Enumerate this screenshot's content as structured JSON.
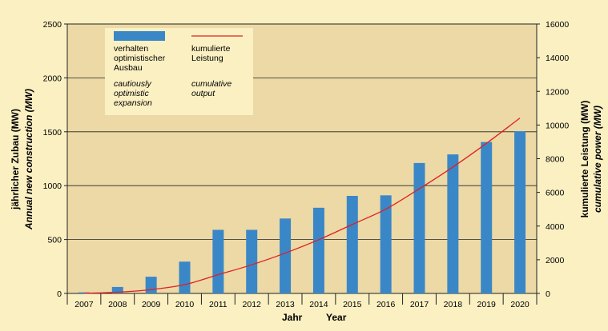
{
  "chart_data": {
    "type": "bar",
    "categories": [
      "2007",
      "2008",
      "2009",
      "2010",
      "2011",
      "2012",
      "2013",
      "2014",
      "2015",
      "2016",
      "2017",
      "2018",
      "2019",
      "2020"
    ],
    "series": [
      {
        "name": "verhalten optimistischer Ausbau / cautiously optimistic expansion",
        "type": "bar",
        "axis": "left",
        "color": "#3a87c8",
        "values": [
          10,
          60,
          155,
          295,
          590,
          590,
          695,
          795,
          905,
          910,
          1210,
          1290,
          1405,
          1505
        ]
      },
      {
        "name": "kumulierte Leistung / cumulative output",
        "type": "line",
        "axis": "right",
        "color": "#e02020",
        "values": [
          10,
          70,
          225,
          520,
          1110,
          1700,
          2395,
          3190,
          4095,
          5005,
          6215,
          7505,
          8910,
          10415
        ]
      }
    ],
    "ylim_left": [
      0,
      2500
    ],
    "ylim_right": [
      0,
      16000
    ],
    "yticks_left": [
      "0",
      "500",
      "1000",
      "1500",
      "2000",
      "2500"
    ],
    "yticks_right": [
      "0",
      "2000",
      "4000",
      "6000",
      "8000",
      "10000",
      "12000",
      "14000",
      "16000"
    ],
    "ylabel_left": {
      "de": "jährlicher Zubau (MW)",
      "en": "Annual new construction  (MW)"
    },
    "ylabel_right": {
      "de": "kumulierte Leistung (MW)",
      "en": "cumulative power (MW)"
    },
    "xlabel": {
      "de": "Jahr",
      "en": "Year"
    },
    "legend": {
      "placement": "top-left",
      "bar_label_de": [
        "verhalten",
        "optimistischer",
        "Ausbau"
      ],
      "bar_label_en": [
        "cautiously",
        "optimistic",
        "expansion"
      ],
      "line_label_de": [
        "kumulierte",
        "Leistung"
      ],
      "line_label_en": [
        "cumulative",
        "output"
      ]
    },
    "grid": true,
    "colors": {
      "plot_bg": "#ecd9a6",
      "page_bg": "#fbf0c2",
      "legend_bg": "#fbf0c2"
    }
  }
}
